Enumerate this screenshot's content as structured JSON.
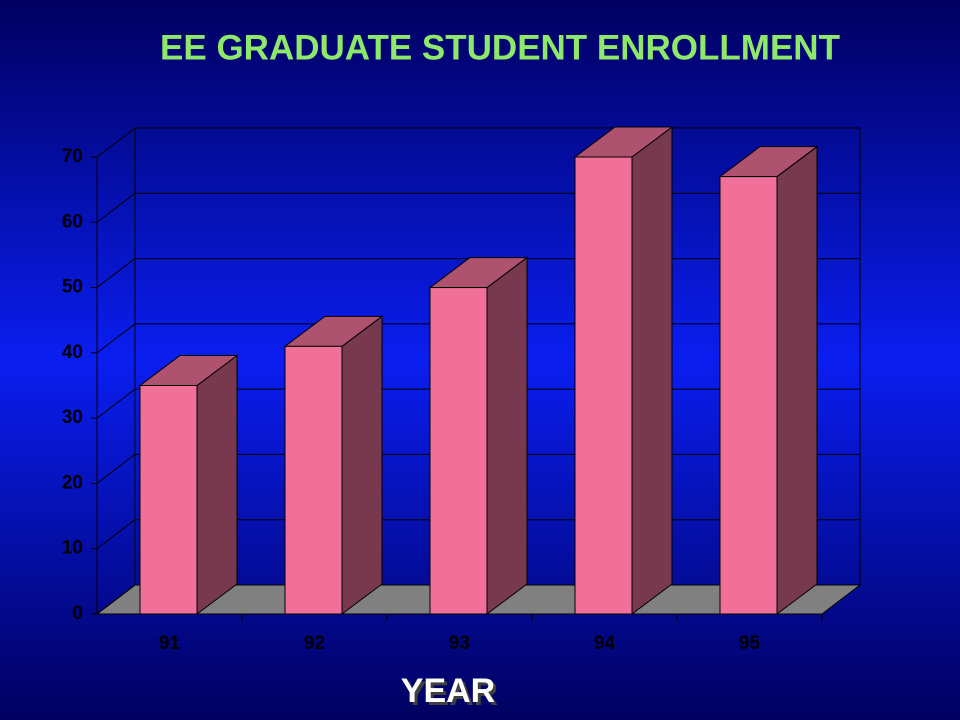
{
  "chart_data": {
    "type": "bar3d",
    "title": "EE  GRADUATE  STUDENT ENROLLMENT",
    "x_label": "YEAR",
    "categories": [
      "91",
      "92",
      "93",
      "94",
      "95"
    ],
    "values": [
      35,
      41,
      50,
      70,
      67
    ],
    "color": "#f0709a",
    "ylim": [
      0,
      70
    ],
    "yticks": [
      0,
      10,
      20,
      30,
      40,
      50,
      60,
      70
    ],
    "grid": true
  }
}
